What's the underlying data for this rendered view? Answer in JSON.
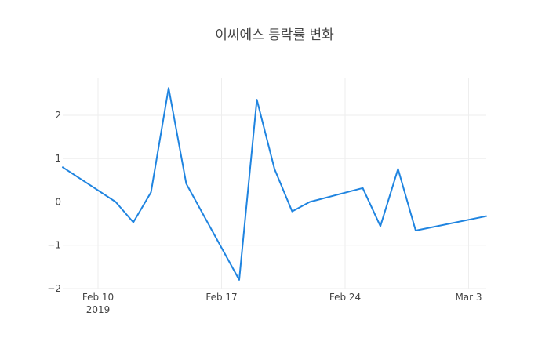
{
  "chart_data": {
    "type": "line",
    "title": "이씨에스 등락률 변화",
    "xlabel": "",
    "ylabel": "",
    "x": [
      "2019-02-08",
      "2019-02-11",
      "2019-02-12",
      "2019-02-13",
      "2019-02-14",
      "2019-02-15",
      "2019-02-18",
      "2019-02-19",
      "2019-02-20",
      "2019-02-21",
      "2019-02-22",
      "2019-02-25",
      "2019-02-26",
      "2019-02-27",
      "2019-02-28",
      "2019-03-04"
    ],
    "series": [
      {
        "values": [
          0.8,
          0.0,
          -0.47,
          0.22,
          2.63,
          0.42,
          -1.8,
          2.36,
          0.76,
          -0.22,
          0.0,
          0.32,
          -0.56,
          0.76,
          -0.66,
          -0.33
        ],
        "color": "#1f84e0"
      }
    ],
    "xlim": [
      "2019-02-08",
      "2019-03-04"
    ],
    "ylim": [
      -2,
      2.85
    ],
    "xticks": [
      {
        "date": "2019-02-10",
        "label": "Feb 10",
        "sublabel": "2019"
      },
      {
        "date": "2019-02-17",
        "label": "Feb 17"
      },
      {
        "date": "2019-02-24",
        "label": "Feb 24"
      },
      {
        "date": "2019-03-03",
        "label": "Mar 3"
      }
    ],
    "yticks": [
      {
        "value": 2,
        "label": "2"
      },
      {
        "value": 1,
        "label": "1"
      },
      {
        "value": 0,
        "label": "0"
      },
      {
        "value": -1,
        "label": "−1"
      },
      {
        "value": -2,
        "label": "−2"
      }
    ],
    "grid": true
  }
}
